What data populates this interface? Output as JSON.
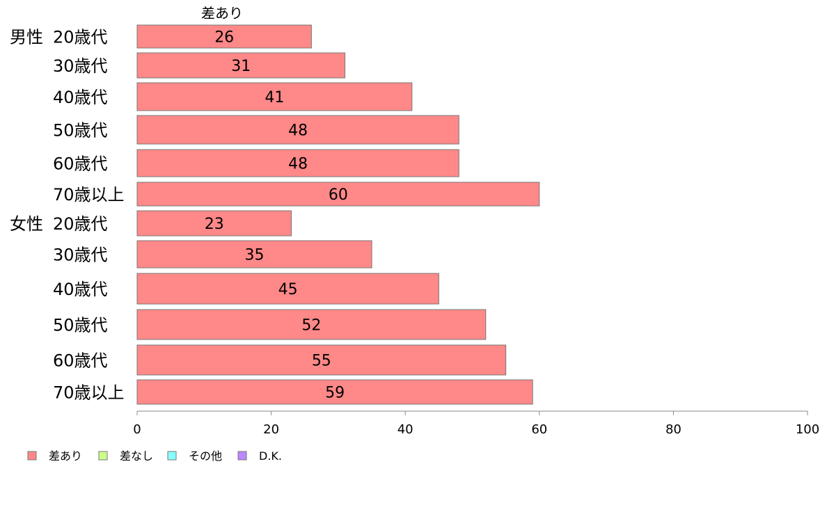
{
  "chart_data": {
    "type": "bar",
    "orientation": "horizontal",
    "top_label": "差あり",
    "groups": [
      {
        "name": "男性",
        "categories": [
          "20歳代",
          "30歳代",
          "40歳代",
          "50歳代",
          "60歳代",
          "70歳以上"
        ]
      },
      {
        "name": "女性",
        "categories": [
          "20歳代",
          "30歳代",
          "40歳代",
          "50歳代",
          "60歳代",
          "70歳以上"
        ]
      }
    ],
    "series": [
      {
        "name": "差あり",
        "color": "#ff8888",
        "values": [
          26,
          31,
          41,
          48,
          48,
          60,
          23,
          35,
          45,
          52,
          55,
          59
        ]
      }
    ],
    "value_axis": {
      "min": 0,
      "max": 100,
      "ticks": [
        "0",
        "20",
        "40",
        "60",
        "80",
        "100"
      ]
    },
    "legend": {
      "position": "bottom-left",
      "items": [
        {
          "label": "差あり",
          "color": "#ff8888"
        },
        {
          "label": "差なし",
          "color": "#ccff88"
        },
        {
          "label": "その他",
          "color": "#88ffff"
        },
        {
          "label": "D.K.",
          "color": "#bb88ff"
        }
      ]
    }
  }
}
